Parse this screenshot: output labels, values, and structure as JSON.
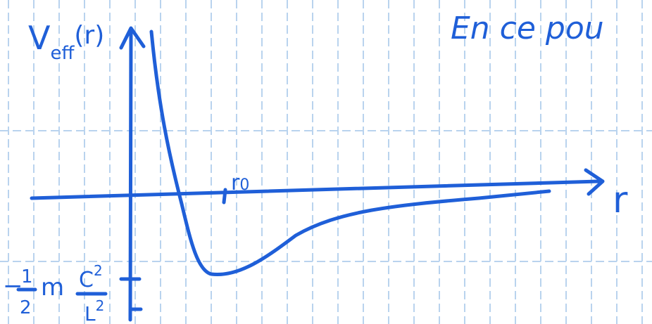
{
  "annotation": "En ce pou",
  "y_axis": {
    "symbol": "V",
    "subscript": "eff",
    "argument": "(r)"
  },
  "x_axis": {
    "symbol": "r"
  },
  "radius_mark": {
    "symbol": "r",
    "subscript": "0"
  },
  "minimum_label": {
    "sign": "−",
    "numerator": "1",
    "denominator": "2",
    "mass": "m",
    "C": "C",
    "C_power": "2",
    "L": "L",
    "L_power": "2"
  }
}
